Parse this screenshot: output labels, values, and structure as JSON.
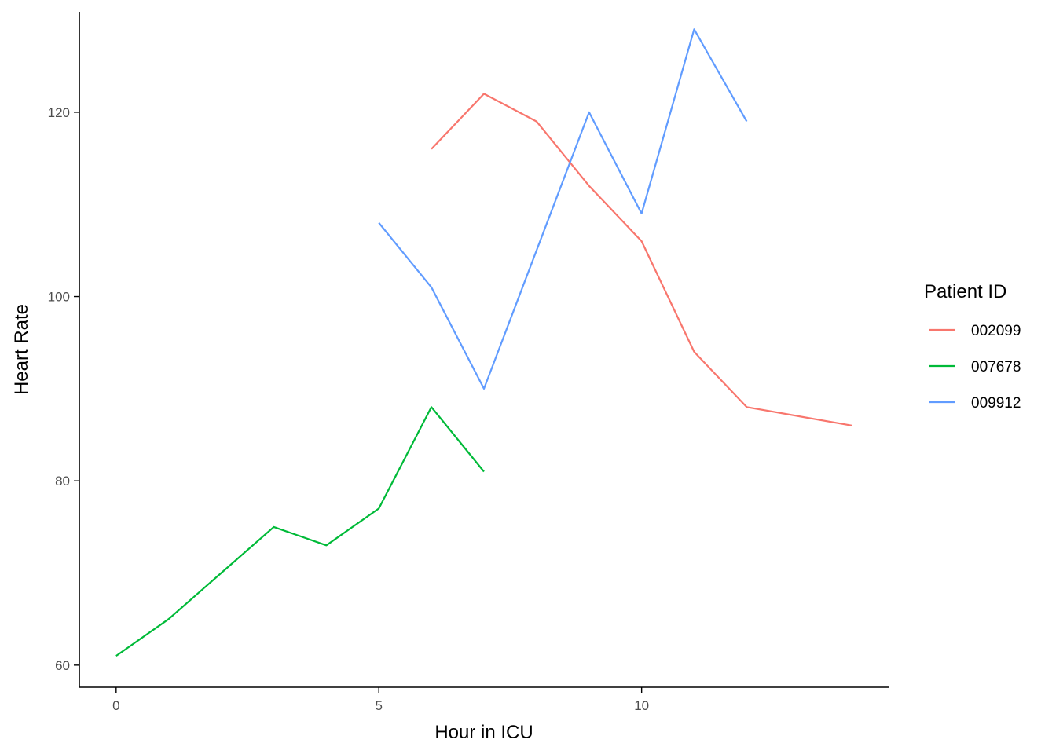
{
  "chart_data": {
    "type": "line",
    "xlabel": "Hour in ICU",
    "ylabel": "Heart Rate",
    "legend_title": "Patient ID",
    "legend_position": "right",
    "grid": false,
    "xlim": [
      -0.7,
      14.7
    ],
    "ylim": [
      57.6,
      130.9
    ],
    "x_ticks": [
      0,
      5,
      10
    ],
    "y_ticks": [
      60,
      80,
      100,
      120
    ],
    "series": [
      {
        "name": "002099",
        "color": "#F8766D",
        "x": [
          6,
          7,
          8,
          9,
          10,
          11,
          12,
          14
        ],
        "y": [
          116,
          122,
          119,
          112,
          106,
          94,
          88,
          86
        ]
      },
      {
        "name": "007678",
        "color": "#00BA38",
        "x": [
          0,
          1,
          2,
          3,
          4,
          5,
          6,
          7
        ],
        "y": [
          61,
          65,
          70,
          75,
          73,
          77,
          88,
          81
        ]
      },
      {
        "name": "009912",
        "color": "#619CFF",
        "x": [
          5,
          6,
          7,
          9,
          10,
          11,
          12
        ],
        "y": [
          108,
          101,
          90,
          120,
          109,
          129,
          119
        ]
      }
    ]
  }
}
